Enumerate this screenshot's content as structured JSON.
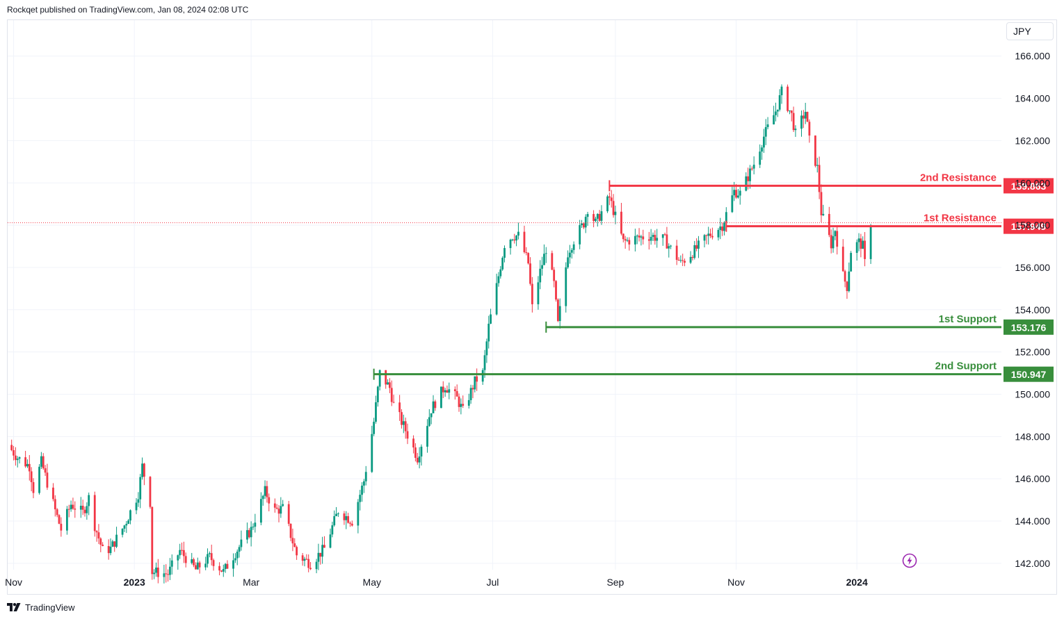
{
  "header": {
    "published_text": "Rockqet published on TradingView.com, Jan 08, 2024 02:08 UTC"
  },
  "currency": {
    "label": "JPY"
  },
  "footer": {
    "brand": "TradingView"
  },
  "icons": {
    "logo": "tradingview-logo-icon",
    "flash": "lightning-bolt-icon"
  },
  "colors": {
    "up": "#089981",
    "down": "#f23645",
    "resistance": "#f23645",
    "support": "#388e3c",
    "grid": "#f0f3fa",
    "text": "#131722"
  },
  "chart_data": {
    "type": "candlestick",
    "x_tick_labels": [
      {
        "date": "2022-11-01",
        "label": "Nov",
        "bold": false
      },
      {
        "date": "2023-01-01",
        "label": "2023",
        "bold": true
      },
      {
        "date": "2023-03-01",
        "label": "Mar",
        "bold": false
      },
      {
        "date": "2023-05-01",
        "label": "May",
        "bold": false
      },
      {
        "date": "2023-07-01",
        "label": "Jul",
        "bold": false
      },
      {
        "date": "2023-09-01",
        "label": "Sep",
        "bold": false
      },
      {
        "date": "2023-11-01",
        "label": "Nov",
        "bold": false
      },
      {
        "date": "2024-01-01",
        "label": "2024",
        "bold": true
      }
    ],
    "y_ticks": [
      "142.000",
      "144.000",
      "146.000",
      "148.000",
      "150.000",
      "152.000",
      "154.000",
      "156.000",
      "158.000",
      "160.000",
      "162.000",
      "164.000",
      "166.000"
    ],
    "ylim": [
      141.7,
      167.7
    ],
    "xlim": [
      "2022-10-29",
      "2024-03-14"
    ],
    "last_price": 157.949,
    "levels": [
      {
        "name": "2nd Resistance",
        "value": 159.863,
        "start": "2023-08-29",
        "kind": "resistance"
      },
      {
        "name": "1st Resistance",
        "value": 157.949,
        "start": "2023-10-27",
        "kind": "resistance"
      },
      {
        "name": "1st Support",
        "value": 153.176,
        "start": "2023-07-28",
        "kind": "support"
      },
      {
        "name": "2nd Support",
        "value": 150.947,
        "start": "2023-05-02",
        "kind": "support"
      }
    ],
    "path_anchors": [
      [
        "2022-10-29",
        147.6
      ],
      [
        "2022-11-03",
        147.0
      ],
      [
        "2022-11-09",
        146.6
      ],
      [
        "2022-11-11",
        145.5
      ],
      [
        "2022-11-15",
        146.8
      ],
      [
        "2022-11-22",
        144.5
      ],
      [
        "2022-11-25",
        143.6
      ],
      [
        "2022-11-30",
        144.8
      ],
      [
        "2022-12-06",
        144.4
      ],
      [
        "2022-12-09",
        145.1
      ],
      [
        "2022-12-12",
        143.8
      ],
      [
        "2022-12-16",
        142.6
      ],
      [
        "2022-12-20",
        142.7
      ],
      [
        "2022-12-27",
        143.8
      ],
      [
        "2023-01-03",
        145.3
      ],
      [
        "2023-01-05",
        146.6
      ],
      [
        "2023-01-09",
        144.9
      ],
      [
        "2023-01-10",
        141.6
      ],
      [
        "2023-01-18",
        141.5
      ],
      [
        "2023-01-24",
        142.6
      ],
      [
        "2023-02-01",
        141.7
      ],
      [
        "2023-02-08",
        142.3
      ],
      [
        "2023-02-15",
        141.6
      ],
      [
        "2023-02-21",
        142.5
      ],
      [
        "2023-03-01",
        143.6
      ],
      [
        "2023-03-08",
        145.4
      ],
      [
        "2023-03-13",
        144.5
      ],
      [
        "2023-03-17",
        144.6
      ],
      [
        "2023-03-24",
        142.4
      ],
      [
        "2023-03-31",
        142.0
      ],
      [
        "2023-04-07",
        142.7
      ],
      [
        "2023-04-14",
        144.5
      ],
      [
        "2023-04-21",
        144.0
      ],
      [
        "2023-04-27",
        145.9
      ],
      [
        "2023-05-02",
        148.7
      ],
      [
        "2023-05-05",
        151.0
      ],
      [
        "2023-05-10",
        150.3
      ],
      [
        "2023-05-12",
        149.5
      ],
      [
        "2023-05-18",
        148.3
      ],
      [
        "2023-05-24",
        147.0
      ],
      [
        "2023-05-31",
        149.3
      ],
      [
        "2023-06-07",
        150.4
      ],
      [
        "2023-06-13",
        149.8
      ],
      [
        "2023-06-16",
        149.2
      ],
      [
        "2023-06-22",
        150.6
      ],
      [
        "2023-06-26",
        151.0
      ],
      [
        "2023-06-29",
        153.2
      ],
      [
        "2023-07-03",
        155.1
      ],
      [
        "2023-07-07",
        157.1
      ],
      [
        "2023-07-11",
        157.5
      ],
      [
        "2023-07-14",
        157.5
      ],
      [
        "2023-07-19",
        156.2
      ],
      [
        "2023-07-21",
        154.1
      ],
      [
        "2023-07-25",
        155.8
      ],
      [
        "2023-07-28",
        156.9
      ],
      [
        "2023-08-01",
        155.2
      ],
      [
        "2023-08-03",
        153.3
      ],
      [
        "2023-08-08",
        156.7
      ],
      [
        "2023-08-11",
        157.3
      ],
      [
        "2023-08-16",
        158.1
      ],
      [
        "2023-08-18",
        158.8
      ],
      [
        "2023-08-22",
        158.1
      ],
      [
        "2023-08-29",
        159.3
      ],
      [
        "2023-09-05",
        157.2
      ],
      [
        "2023-09-12",
        157.4
      ],
      [
        "2023-09-19",
        157.5
      ],
      [
        "2023-09-26",
        157.3
      ],
      [
        "2023-10-04",
        156.2
      ],
      [
        "2023-10-11",
        156.8
      ],
      [
        "2023-10-18",
        157.5
      ],
      [
        "2023-10-25",
        158.0
      ],
      [
        "2023-10-31",
        159.6
      ],
      [
        "2023-11-03",
        159.5
      ],
      [
        "2023-11-10",
        160.9
      ],
      [
        "2023-11-15",
        162.2
      ],
      [
        "2023-11-21",
        163.4
      ],
      [
        "2023-11-24",
        164.3
      ],
      [
        "2023-11-29",
        163.2
      ],
      [
        "2023-12-01",
        162.3
      ],
      [
        "2023-12-06",
        163.4
      ],
      [
        "2023-12-08",
        162.0
      ],
      [
        "2023-12-12",
        160.7
      ],
      [
        "2023-12-14",
        158.6
      ],
      [
        "2023-12-19",
        157.1
      ],
      [
        "2023-12-21",
        157.8
      ],
      [
        "2023-12-25",
        155.6
      ],
      [
        "2023-12-27",
        155.1
      ],
      [
        "2023-12-29",
        156.8
      ],
      [
        "2024-01-02",
        157.2
      ],
      [
        "2024-01-04",
        157.0
      ],
      [
        "2024-01-06",
        155.4
      ],
      [
        "2024-01-08",
        157.9
      ]
    ]
  }
}
